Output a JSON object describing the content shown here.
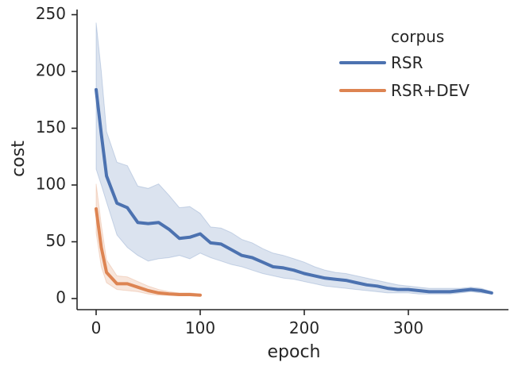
{
  "chart_data": {
    "type": "line",
    "title": "",
    "xlabel": "epoch",
    "ylabel": "cost",
    "xlim": [
      -10,
      395
    ],
    "ylim": [
      -10,
      255
    ],
    "xticks": [
      0,
      100,
      200,
      300
    ],
    "xtick_labels": [
      "0",
      "100",
      "200",
      "300"
    ],
    "yticks": [
      0,
      50,
      100,
      150,
      200,
      250
    ],
    "ytick_labels": [
      "0",
      "50",
      "100",
      "150",
      "200",
      "250"
    ],
    "grid": false,
    "legend": {
      "title": "corpus",
      "placement": "top-right"
    },
    "series": [
      {
        "name": "RSR",
        "color": "#4c72b0",
        "x": [
          0,
          5,
          10,
          20,
          30,
          40,
          50,
          60,
          70,
          80,
          90,
          100,
          110,
          120,
          130,
          140,
          150,
          160,
          170,
          180,
          190,
          200,
          210,
          220,
          230,
          240,
          250,
          260,
          270,
          280,
          290,
          300,
          310,
          320,
          330,
          340,
          350,
          360,
          370,
          380
        ],
        "y": [
          184,
          145,
          108,
          84,
          80,
          67,
          66,
          67,
          61,
          53,
          54,
          57,
          49,
          48,
          43,
          38,
          36,
          32,
          28,
          27,
          25,
          22,
          20,
          18,
          17,
          16,
          14,
          12,
          11,
          9,
          8,
          8,
          7,
          6,
          6,
          6,
          7,
          8,
          7,
          5
        ],
        "lower": [
          114,
          100,
          85,
          56,
          45,
          38,
          33,
          35,
          36,
          38,
          35,
          40,
          36,
          33,
          30,
          28,
          25,
          22,
          20,
          18,
          17,
          15,
          13,
          11,
          10,
          9,
          8,
          7,
          6,
          5,
          5,
          5,
          4,
          4,
          4,
          4,
          5,
          6,
          5,
          4
        ],
        "upper": [
          243,
          200,
          147,
          120,
          117,
          99,
          97,
          101,
          91,
          80,
          81,
          75,
          63,
          62,
          58,
          52,
          49,
          44,
          40,
          38,
          35,
          32,
          28,
          25,
          23,
          22,
          20,
          18,
          16,
          14,
          12,
          11,
          10,
          9,
          9,
          9,
          9,
          10,
          9,
          6
        ]
      },
      {
        "name": "RSR+DEV",
        "color": "#dd8452",
        "x": [
          0,
          5,
          10,
          20,
          30,
          40,
          50,
          60,
          70,
          80,
          90,
          100
        ],
        "y": [
          79,
          45,
          23,
          13,
          13,
          10,
          7,
          5,
          4,
          3.5,
          3.5,
          3
        ],
        "lower": [
          58,
          28,
          14,
          8,
          7,
          6,
          4,
          3,
          3,
          2.5,
          2.5,
          2
        ],
        "upper": [
          101,
          65,
          34,
          20,
          19,
          15,
          11,
          8,
          6,
          5,
          5,
          4
        ]
      }
    ]
  }
}
